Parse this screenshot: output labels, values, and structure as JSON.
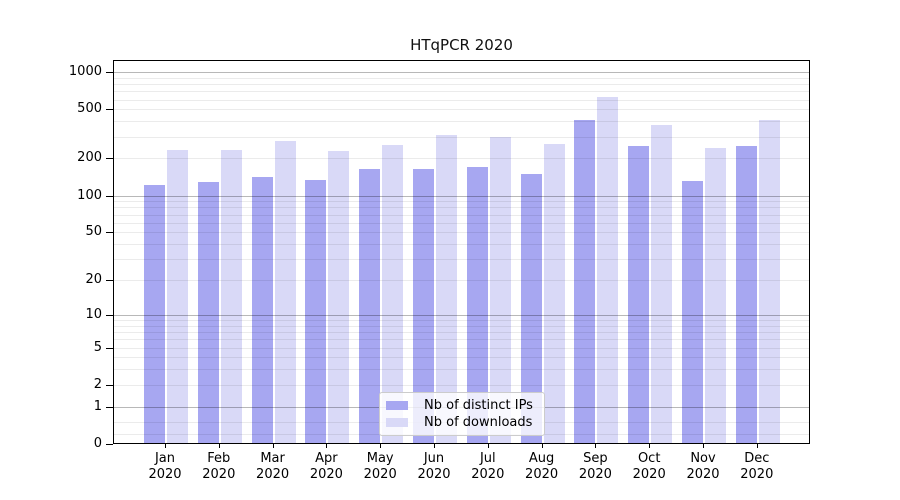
{
  "title": "HTqPCR 2020",
  "year_label": "2020",
  "colors": {
    "ips_bar": "#a7a7f1",
    "downloads_bar": "#d9d9f7",
    "grid_major": "rgba(0,0,0,0.28)",
    "grid_minor": "rgba(0,0,0,0.08)",
    "axis": "#000000",
    "legend_border": "#cccccc",
    "legend_bg": "rgba(255,255,255,0.8)",
    "text": "#000000"
  },
  "y_axis": {
    "scale": "log1p",
    "tick_labels": [
      "1000",
      "500",
      "200",
      "100",
      "50",
      "20",
      "10",
      "5",
      "2",
      "1",
      "0"
    ]
  },
  "x_axis": {
    "months": [
      "Jan",
      "Feb",
      "Mar",
      "Apr",
      "May",
      "Jun",
      "Jul",
      "Aug",
      "Sep",
      "Oct",
      "Nov",
      "Dec"
    ]
  },
  "legend": {
    "items": [
      {
        "label": "Nb of distinct IPs",
        "color_key": "ips_bar"
      },
      {
        "label": "Nb of downloads",
        "color_key": "downloads_bar"
      }
    ]
  },
  "chart_data": {
    "type": "bar",
    "title": "HTqPCR 2020",
    "categories": [
      "Jan 2020",
      "Feb 2020",
      "Mar 2020",
      "Apr 2020",
      "May 2020",
      "Jun 2020",
      "Jul 2020",
      "Aug 2020",
      "Sep 2020",
      "Oct 2020",
      "Nov 2020",
      "Dec 2020"
    ],
    "series": [
      {
        "name": "Nb of distinct IPs",
        "values": [
          120,
          126,
          138,
          131,
          162,
          160,
          169,
          147,
          400,
          250,
          130,
          250
        ]
      },
      {
        "name": "Nb of downloads",
        "values": [
          230,
          231,
          273,
          227,
          252,
          305,
          291,
          256,
          612,
          368,
          239,
          400
        ]
      }
    ],
    "xlabel": "",
    "ylabel": "",
    "yscale": "log1p",
    "yticks": [
      0,
      1,
      2,
      5,
      10,
      20,
      50,
      100,
      200,
      500,
      1000
    ],
    "ylim": [
      0,
      1100
    ],
    "grid": true,
    "legend_position": "lower center"
  }
}
